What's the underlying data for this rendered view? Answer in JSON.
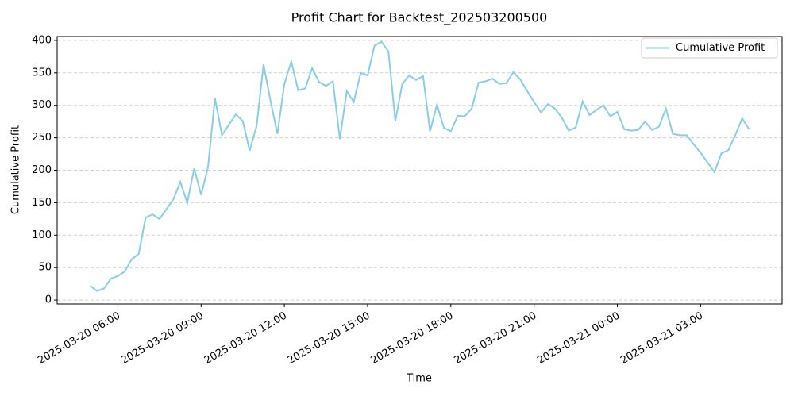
{
  "chart_data": {
    "type": "line",
    "title": "Profit Chart for Backtest_202503200500",
    "x_label": "Time",
    "y_label": "Cumulative Profit",
    "x": [
      "2025-03-20 05:00",
      "2025-03-20 05:15",
      "2025-03-20 05:30",
      "2025-03-20 05:45",
      "2025-03-20 06:00",
      "2025-03-20 06:15",
      "2025-03-20 06:30",
      "2025-03-20 06:45",
      "2025-03-20 07:00",
      "2025-03-20 07:15",
      "2025-03-20 07:30",
      "2025-03-20 07:45",
      "2025-03-20 08:00",
      "2025-03-20 08:15",
      "2025-03-20 08:30",
      "2025-03-20 08:45",
      "2025-03-20 09:00",
      "2025-03-20 09:15",
      "2025-03-20 09:30",
      "2025-03-20 09:45",
      "2025-03-20 10:00",
      "2025-03-20 10:15",
      "2025-03-20 10:30",
      "2025-03-20 10:45",
      "2025-03-20 11:00",
      "2025-03-20 11:15",
      "2025-03-20 11:30",
      "2025-03-20 11:45",
      "2025-03-20 12:00",
      "2025-03-20 12:15",
      "2025-03-20 12:30",
      "2025-03-20 12:45",
      "2025-03-20 13:00",
      "2025-03-20 13:15",
      "2025-03-20 13:30",
      "2025-03-20 13:45",
      "2025-03-20 14:00",
      "2025-03-20 14:15",
      "2025-03-20 14:30",
      "2025-03-20 14:45",
      "2025-03-20 15:00",
      "2025-03-20 15:15",
      "2025-03-20 15:30",
      "2025-03-20 15:45",
      "2025-03-20 16:00",
      "2025-03-20 16:15",
      "2025-03-20 16:30",
      "2025-03-20 16:45",
      "2025-03-20 17:00",
      "2025-03-20 17:15",
      "2025-03-20 17:30",
      "2025-03-20 17:45",
      "2025-03-20 18:00",
      "2025-03-20 18:15",
      "2025-03-20 18:30",
      "2025-03-20 18:45",
      "2025-03-20 19:00",
      "2025-03-20 19:15",
      "2025-03-20 19:30",
      "2025-03-20 19:45",
      "2025-03-20 20:00",
      "2025-03-20 20:15",
      "2025-03-20 20:30",
      "2025-03-20 20:45",
      "2025-03-20 21:00",
      "2025-03-20 21:15",
      "2025-03-20 21:30",
      "2025-03-20 21:45",
      "2025-03-20 22:00",
      "2025-03-20 22:15",
      "2025-03-20 22:30",
      "2025-03-20 22:45",
      "2025-03-20 23:00",
      "2025-03-20 23:15",
      "2025-03-20 23:30",
      "2025-03-20 23:45",
      "2025-03-21 00:00",
      "2025-03-21 00:15",
      "2025-03-21 00:30",
      "2025-03-21 00:45",
      "2025-03-21 01:00",
      "2025-03-21 01:15",
      "2025-03-21 01:30",
      "2025-03-21 01:45",
      "2025-03-21 02:00",
      "2025-03-21 02:15",
      "2025-03-21 02:30",
      "2025-03-21 02:45",
      "2025-03-21 03:00",
      "2025-03-21 03:15",
      "2025-03-21 03:30",
      "2025-03-21 03:45",
      "2025-03-21 04:00",
      "2025-03-21 04:15",
      "2025-03-21 04:30",
      "2025-03-21 04:45"
    ],
    "series": [
      {
        "name": "Cumulative Profit",
        "color": "#87ceeb",
        "values": [
          22,
          14,
          18,
          33,
          37,
          44,
          63,
          71,
          127,
          132,
          125,
          140,
          155,
          182,
          150,
          203,
          162,
          205,
          311,
          254,
          270,
          286,
          276,
          230,
          268,
          363,
          307,
          256,
          333,
          367,
          323,
          326,
          357,
          336,
          330,
          337,
          248,
          322,
          305,
          350,
          346,
          392,
          398,
          383,
          276,
          333,
          346,
          339,
          345,
          260,
          301,
          265,
          260,
          284,
          283,
          295,
          335,
          337,
          341,
          333,
          334,
          351,
          340,
          322,
          305,
          289,
          302,
          295,
          281,
          261,
          266,
          306,
          285,
          293,
          300,
          283,
          290,
          263,
          261,
          262,
          275,
          262,
          267,
          295,
          256,
          254,
          254,
          240,
          227,
          212,
          197,
          226,
          231,
          254,
          280,
          263
        ]
      }
    ],
    "xlim": [
      "2025-03-20 03:48:45",
      "2025-03-21 05:56:15"
    ],
    "xticks": [
      "2025-03-20 06:00",
      "2025-03-20 09:00",
      "2025-03-20 12:00",
      "2025-03-20 15:00",
      "2025-03-20 18:00",
      "2025-03-20 21:00",
      "2025-03-21 00:00",
      "2025-03-21 03:00"
    ],
    "ylim": [
      -6,
      406
    ],
    "yticks": [
      0,
      50,
      100,
      150,
      200,
      250,
      300,
      350,
      400
    ],
    "grid": true,
    "legend": "upper right"
  }
}
